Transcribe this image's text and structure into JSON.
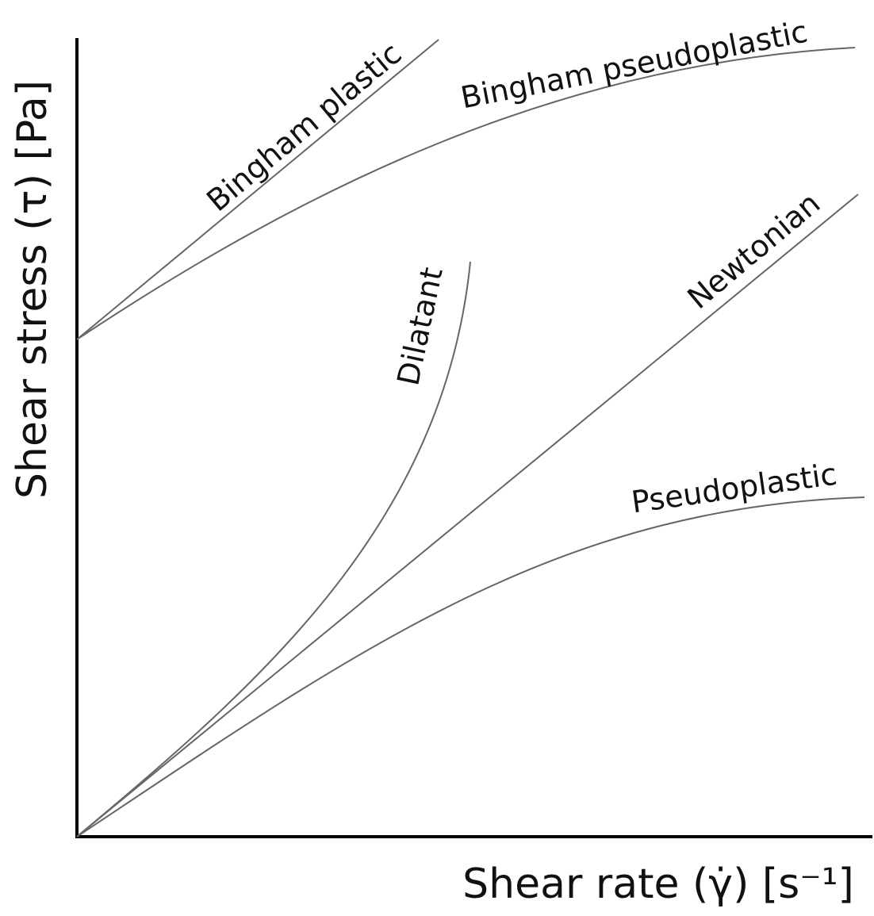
{
  "axes": {
    "y_label": "Shear stress (τ) [Pa]",
    "x_label": "Shear rate (γ̇) [s⁻¹]"
  },
  "curves": [
    {
      "label": "Bingham plastic"
    },
    {
      "label": "Bingham pseudoplastic"
    },
    {
      "label": "Dilatant"
    },
    {
      "label": "Newtonian"
    },
    {
      "label": "Pseudoplastic"
    }
  ]
}
